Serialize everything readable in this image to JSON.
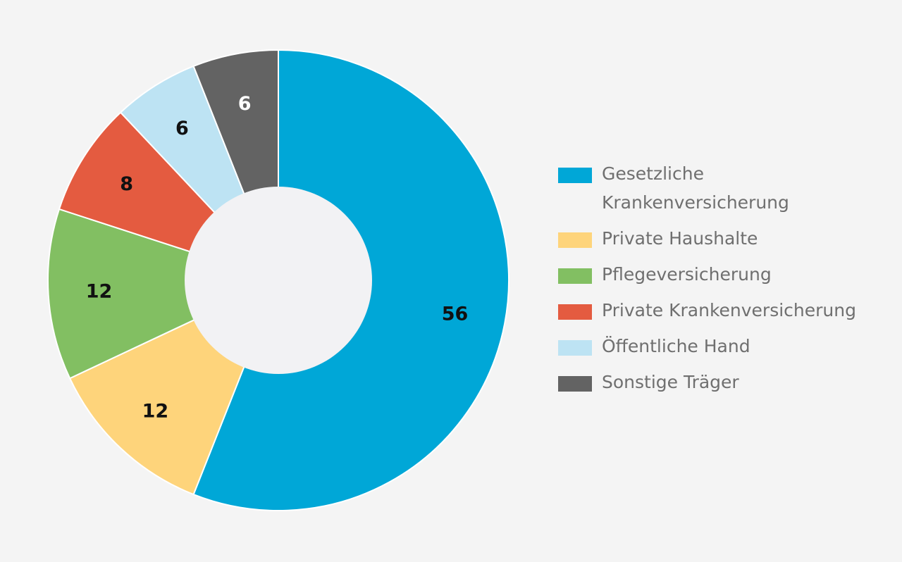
{
  "chart_data": {
    "type": "pie",
    "title": "",
    "donut": true,
    "start_angle_deg": 0,
    "direction": "clockwise",
    "legend_position": "right",
    "slices": [
      {
        "name": "Gesetzliche Krankenversicherung",
        "value": 56,
        "label": "56",
        "color": "#00a7d7",
        "label_color": "#111111"
      },
      {
        "name": "Private Haushalte",
        "value": 12,
        "label": "12",
        "color": "#fed47b",
        "label_color": "#111111"
      },
      {
        "name": "Pflegeversicherung",
        "value": 12,
        "label": "12",
        "color": "#82bf62",
        "label_color": "#111111"
      },
      {
        "name": "Private Krankenversicherung",
        "value": 8,
        "label": "8",
        "color": "#e45b40",
        "label_color": "#111111"
      },
      {
        "name": "Öffentliche Hand",
        "value": 6,
        "label": "6",
        "color": "#bde3f3",
        "label_color": "#111111"
      },
      {
        "name": "Sonstige Träger",
        "value": 6,
        "label": "6",
        "color": "#636363",
        "label_color": "#ffffff"
      }
    ]
  },
  "colors": {
    "background": "#f4f4f4",
    "hole": "#f2f2f4",
    "separator": "#ffffff",
    "legend_text": "#6f6f6f"
  }
}
